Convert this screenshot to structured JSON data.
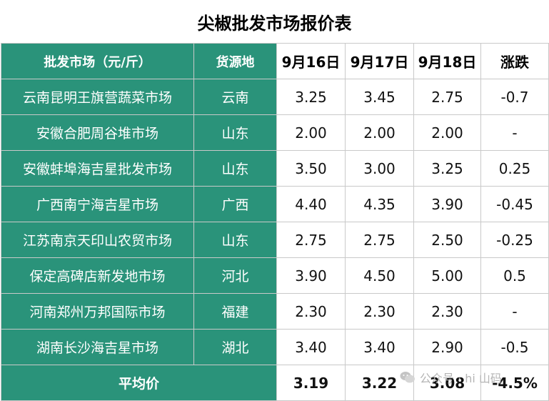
{
  "title": "尖椒批发市场报价表",
  "header": {
    "market": "批发市场（元/斤）",
    "origin": "货源地",
    "d1": "9月16日",
    "d2": "9月17日",
    "d3": "9月18日",
    "change": "涨跌"
  },
  "rows": [
    {
      "market": "云南昆明王旗营蔬菜市场",
      "origin": "云南",
      "d1": "3.25",
      "d2": "3.45",
      "d3": "2.75",
      "change": "-0.7"
    },
    {
      "market": "安徽合肥周谷堆市场",
      "origin": "山东",
      "d1": "2.00",
      "d2": "2.00",
      "d3": "2.00",
      "change": "-"
    },
    {
      "market": "安徽蚌埠海吉星批发市场",
      "origin": "山东",
      "d1": "3.50",
      "d2": "3.00",
      "d3": "3.25",
      "change": "0.25"
    },
    {
      "market": "广西南宁海吉星市场",
      "origin": "广西",
      "d1": "4.40",
      "d2": "4.35",
      "d3": "3.90",
      "change": "-0.45"
    },
    {
      "market": "江苏南京天印山农贸市场",
      "origin": "山东",
      "d1": "2.75",
      "d2": "2.75",
      "d3": "2.50",
      "change": "-0.25"
    },
    {
      "market": "保定高碑店新发地市场",
      "origin": "河北",
      "d1": "3.90",
      "d2": "4.50",
      "d3": "5.00",
      "change": "0.5"
    },
    {
      "market": "河南郑州万邦国际市场",
      "origin": "福建",
      "d1": "2.30",
      "d2": "2.30",
      "d3": "2.30",
      "change": "-"
    },
    {
      "market": "湖南长沙海吉星市场",
      "origin": "湖北",
      "d1": "3.40",
      "d2": "3.40",
      "d3": "2.90",
      "change": "-0.5"
    }
  ],
  "average": {
    "label": "平均价",
    "d1": "3.19",
    "d2": "3.22",
    "d3": "3.08",
    "change": "-4.5%"
  },
  "watermark": "公众号 · hi 山码",
  "colors": {
    "header_green": "#2a937a",
    "text_white": "#ffffff",
    "border": "#c9c9c9"
  },
  "watermark_icon": "wechat-icon"
}
